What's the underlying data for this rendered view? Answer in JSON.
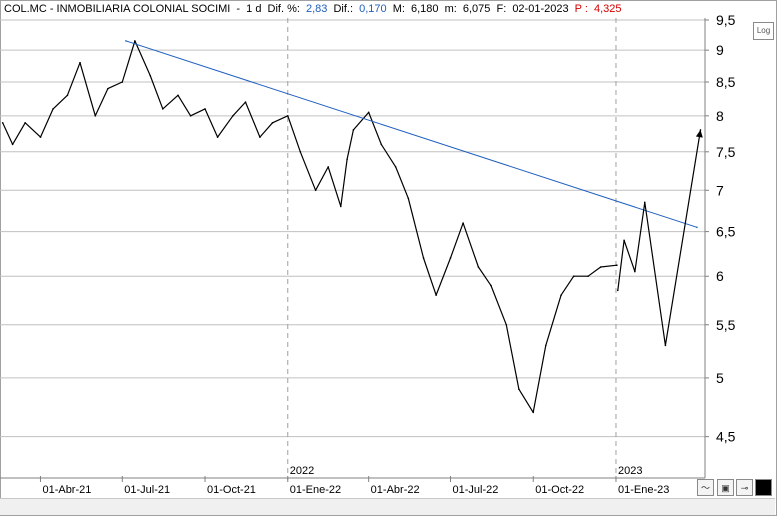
{
  "header": {
    "symbol": "COL.MC - INMOBILIARIA COLONIAL SOCIMI",
    "period": "1 d",
    "dif_pct_label": "Dif. %:",
    "dif_pct_value": "2,83",
    "dif_label": "Dif.:",
    "dif_value": "0,170",
    "max_label": "M:",
    "max_value": "6,180",
    "min_label": "m:",
    "min_value": "6,075",
    "date_label": "F:",
    "date_value": "02-01-2023",
    "p_label": "P :",
    "p_value": "4,325"
  },
  "controls": {
    "log_button": "Log"
  },
  "colors": {
    "price": "#000000",
    "trendline": "#1f5fbf",
    "grid": "#c0c0c0",
    "year_marker": "#a0a0a0",
    "accent_blue": "#1f5fbf",
    "accent_red": "#d40000"
  },
  "chart_data": {
    "type": "line",
    "y_scale": "log",
    "ylim": [
      4.3,
      9.5
    ],
    "y_ticks": [
      4.5,
      5,
      5.5,
      6,
      6.5,
      7,
      7.5,
      8,
      8.5,
      9,
      9.5
    ],
    "y_tick_labels": [
      "4,5",
      "5",
      "5,5",
      "6",
      "6,5",
      "7",
      "7,5",
      "8",
      "8,5",
      "9",
      "9,5"
    ],
    "xlim": [
      "2021-02-15",
      "2023-04-10"
    ],
    "x_ticks": [
      "2021-04-01",
      "2021-07-01",
      "2021-10-01",
      "2022-01-01",
      "2022-04-01",
      "2022-07-01",
      "2022-10-01",
      "2023-01-01"
    ],
    "x_tick_labels": [
      "01-Abr-21",
      "01-Jul-21",
      "01-Oct-21",
      "01-Ene-22",
      "01-Abr-22",
      "01-Jul-22",
      "01-Oct-22",
      "01-Ene-23"
    ],
    "year_markers": [
      {
        "date": "2022-01-01",
        "label": "2022"
      },
      {
        "date": "2023-01-01",
        "label": "2023"
      }
    ],
    "series": [
      {
        "x": [
          "2021-02-18",
          "2021-03-01",
          "2021-03-15",
          "2021-04-01",
          "2021-04-15",
          "2021-05-01",
          "2021-05-15",
          "2021-06-01",
          "2021-06-15",
          "2021-07-01",
          "2021-07-15",
          "2021-08-01",
          "2021-08-15",
          "2021-09-01",
          "2021-09-15",
          "2021-10-01",
          "2021-10-15",
          "2021-11-01",
          "2021-11-15",
          "2021-12-01",
          "2021-12-15",
          "2022-01-01",
          "2022-01-15",
          "2022-02-01",
          "2022-02-15",
          "2022-03-01",
          "2022-03-08",
          "2022-03-15",
          "2022-04-01",
          "2022-04-15",
          "2022-05-01",
          "2022-05-15",
          "2022-06-01",
          "2022-06-15",
          "2022-07-01",
          "2022-07-15",
          "2022-08-01",
          "2022-08-15",
          "2022-09-01",
          "2022-09-15",
          "2022-10-01",
          "2022-10-15",
          "2022-11-01",
          "2022-11-15",
          "2022-12-01",
          "2022-12-15",
          "2023-01-02"
        ],
        "y": [
          7.9,
          7.6,
          7.9,
          7.7,
          8.1,
          8.3,
          8.8,
          8.0,
          8.4,
          8.5,
          9.15,
          8.6,
          8.1,
          8.3,
          8.0,
          8.1,
          7.7,
          8.0,
          8.2,
          7.7,
          7.9,
          8.0,
          7.5,
          7.0,
          7.3,
          6.8,
          7.4,
          7.8,
          8.05,
          7.6,
          7.3,
          6.9,
          6.2,
          5.8,
          6.2,
          6.6,
          6.1,
          5.9,
          5.5,
          4.9,
          4.7,
          5.3,
          5.8,
          6.0,
          6.0,
          6.1,
          6.12
        ]
      },
      {
        "x": [
          "2021-07-05",
          "2023-04-01"
        ],
        "y": [
          9.15,
          6.55
        ]
      },
      {
        "x": [
          "2023-01-03",
          "2023-01-10",
          "2023-01-22",
          "2023-02-02",
          "2023-02-25",
          "2023-04-05"
        ],
        "y": [
          5.85,
          6.4,
          6.05,
          6.85,
          5.3,
          7.8
        ]
      }
    ]
  }
}
